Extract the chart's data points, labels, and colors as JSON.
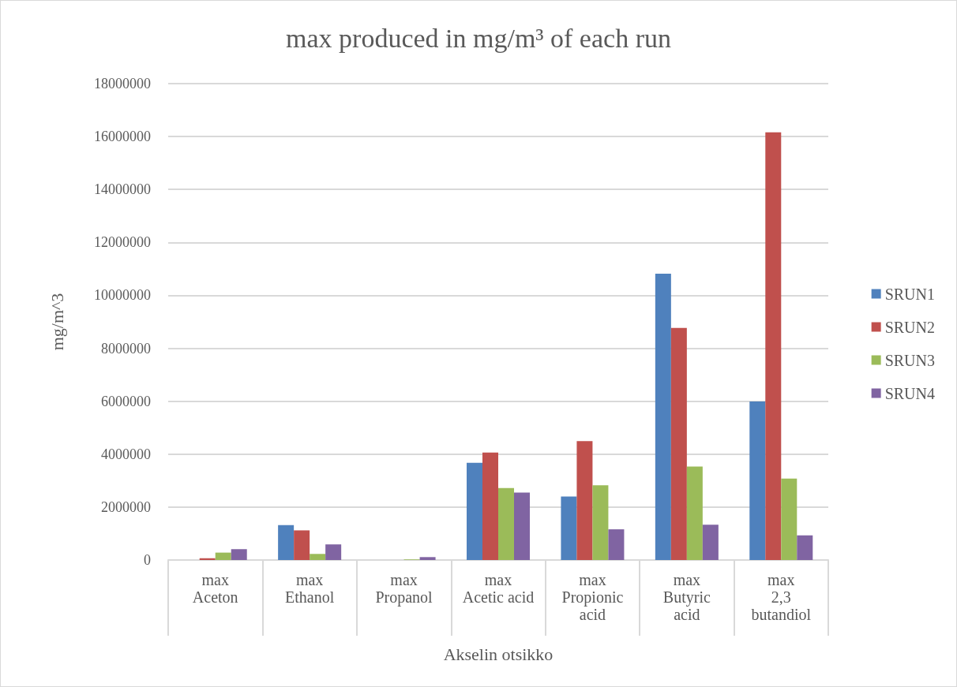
{
  "chart_data": {
    "type": "bar",
    "title": "max produced in mg/m³ of each run",
    "xlabel": "Akselin otsikko",
    "ylabel": "mg/m^3",
    "categories": [
      "max\nAceton",
      "max\nEthanol",
      "max\nPropanol",
      "max\nAcetic acid",
      "max\nPropionic acid",
      "max\nButyric acid",
      "max\n2,3 butandiol"
    ],
    "series": [
      {
        "name": "SRUN1",
        "color": "#4f81bd",
        "values": [
          0,
          1320000,
          0,
          3670000,
          2400000,
          10820000,
          5990000
        ]
      },
      {
        "name": "SRUN2",
        "color": "#c0504d",
        "values": [
          70000,
          1120000,
          0,
          4060000,
          4490000,
          8770000,
          16160000
        ]
      },
      {
        "name": "SRUN3",
        "color": "#9bbb59",
        "values": [
          280000,
          230000,
          20000,
          2720000,
          2820000,
          3530000,
          3080000
        ]
      },
      {
        "name": "SRUN4",
        "color": "#8064a2",
        "values": [
          410000,
          590000,
          110000,
          2550000,
          1160000,
          1330000,
          930000
        ]
      }
    ],
    "ylim": [
      0,
      18000000
    ],
    "yticks": [
      0,
      2000000,
      4000000,
      6000000,
      8000000,
      10000000,
      12000000,
      14000000,
      16000000,
      18000000
    ],
    "grid": "y",
    "legend": "right"
  }
}
